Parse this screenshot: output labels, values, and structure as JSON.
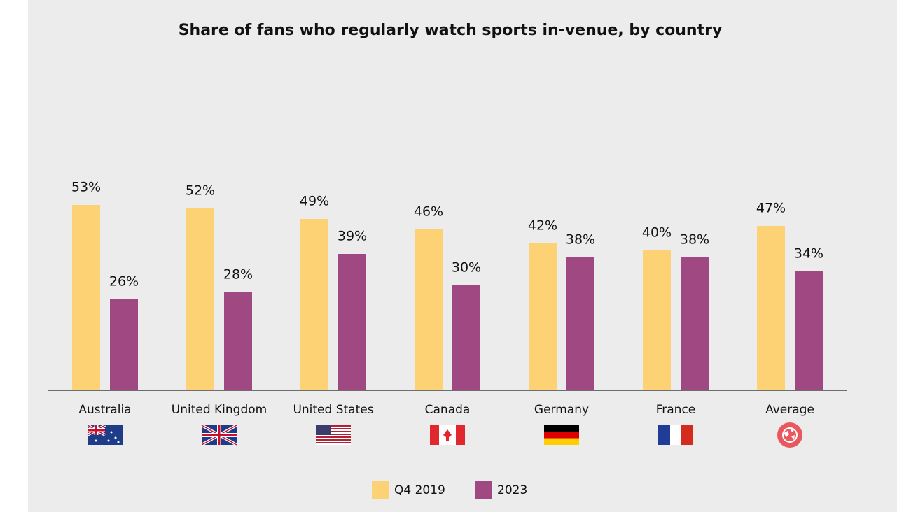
{
  "chart_data": {
    "type": "bar",
    "title": "Share of fans who regularly watch sports in-venue, by country",
    "categories": [
      "Australia",
      "United Kingdom",
      "United States",
      "Canada",
      "Germany",
      "France",
      "Average"
    ],
    "series": [
      {
        "name": "Q4 2019",
        "color": "#fdd274",
        "values": [
          53,
          52,
          49,
          46,
          42,
          40,
          47
        ],
        "value_labels": [
          "53%",
          "52%",
          "49%",
          "46%",
          "42%",
          "40%",
          "47%"
        ]
      },
      {
        "name": "2023",
        "color": "#a04882",
        "values": [
          26,
          28,
          39,
          30,
          38,
          38,
          34
        ],
        "value_labels": [
          "26%",
          "28%",
          "39%",
          "30%",
          "38%",
          "38%",
          "34%"
        ]
      }
    ],
    "ylim": [
      0,
      100
    ]
  }
}
